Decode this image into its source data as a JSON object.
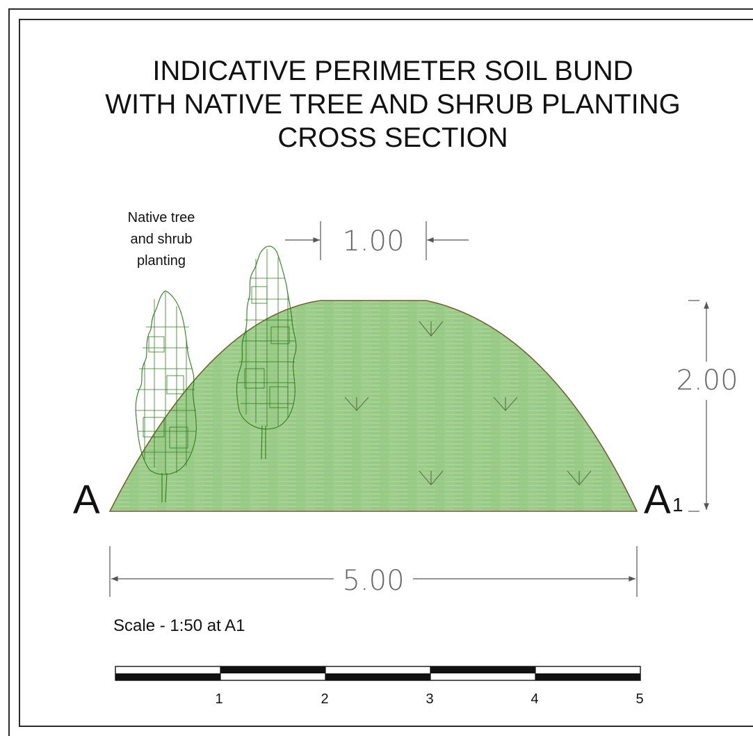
{
  "title": {
    "line1": "INDICATIVE PERIMETER SOIL BUND",
    "line2": "WITH NATIVE TREE AND SHRUB PLANTING",
    "line3": "CROSS SECTION"
  },
  "planting_label": {
    "line1": "Native tree",
    "line2": "and shrub",
    "line3": "planting"
  },
  "section_marks": {
    "left": "A",
    "right": "A",
    "right_subscript": "1"
  },
  "dimensions": {
    "top_width": "1.00",
    "height": "2.00",
    "base_width": "5.00"
  },
  "scale": {
    "text": "Scale - 1:50 at A1",
    "ticks": [
      "1",
      "2",
      "3",
      "4",
      "5"
    ]
  },
  "colors": {
    "bund_fill": "#9ccc8a",
    "bund_stroke": "#7a5a3a",
    "tree_stroke": "#2f7a1e",
    "line": "#555555"
  }
}
